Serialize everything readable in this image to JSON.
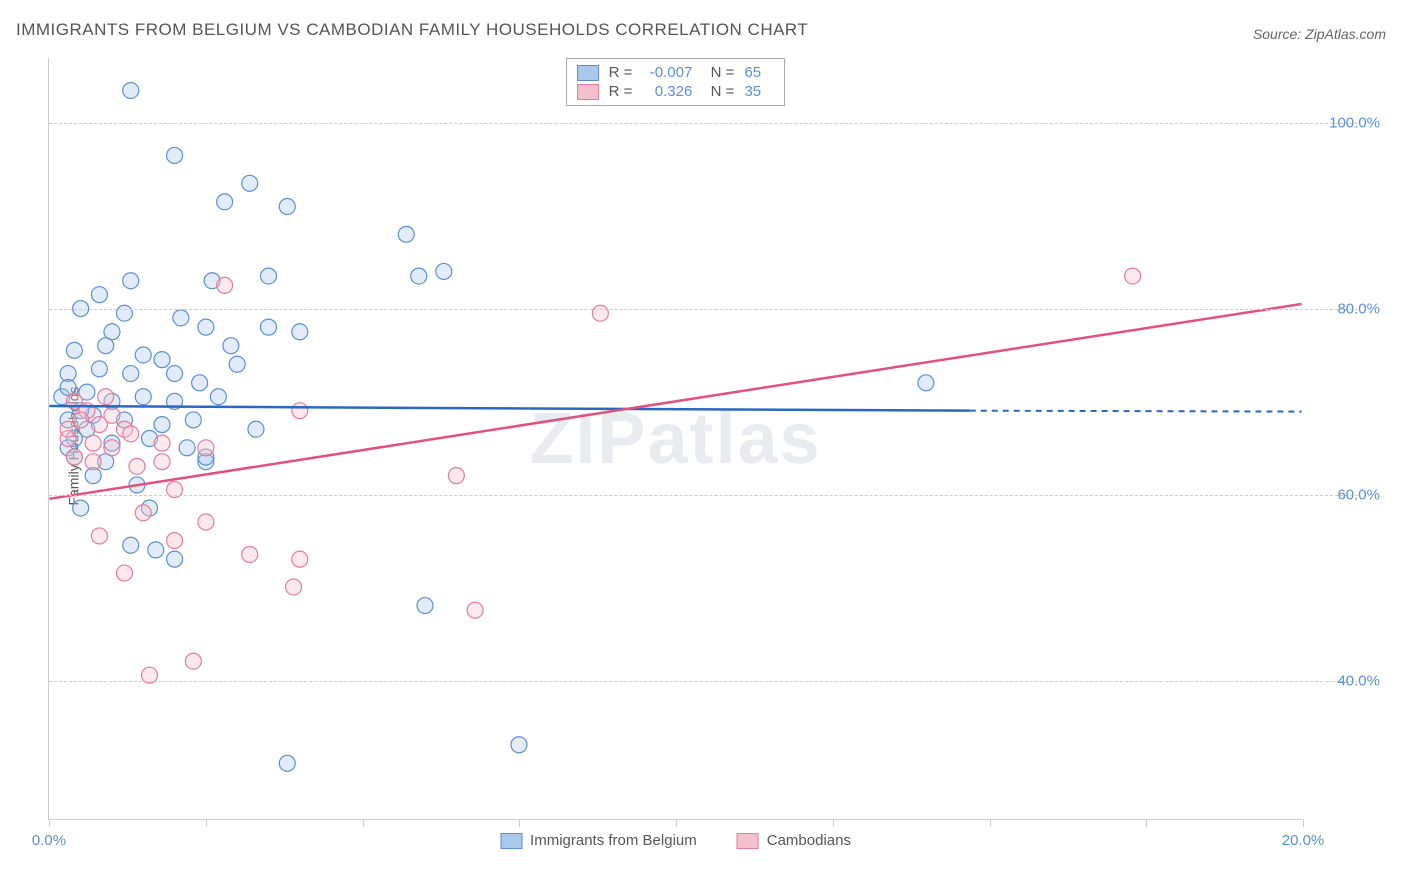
{
  "title": "IMMIGRANTS FROM BELGIUM VS CAMBODIAN FAMILY HOUSEHOLDS CORRELATION CHART",
  "source": "Source: ZipAtlas.com",
  "watermark": "ZIPatlas",
  "y_axis_label": "Family Households",
  "chart": {
    "type": "scatter-with-regression",
    "xlim": [
      0,
      20
    ],
    "ylim": [
      25,
      107
    ],
    "x_ticks": [
      0,
      2.5,
      5,
      7.5,
      10,
      12.5,
      15,
      17.5,
      20
    ],
    "x_tick_labels_shown": {
      "0": "0.0%",
      "20": "20.0%"
    },
    "y_gridlines": [
      40,
      60,
      80,
      100
    ],
    "y_tick_labels": {
      "40": "40.0%",
      "60": "60.0%",
      "80": "80.0%",
      "100": "100.0%"
    },
    "background_color": "#ffffff",
    "grid_color": "#cccccc",
    "marker_radius": 8,
    "marker_stroke_width": 1.2,
    "marker_fill_opacity": 0.35,
    "line_width": 2.5,
    "series": [
      {
        "name": "Immigrants from Belgium",
        "color_fill": "#a8c8ec",
        "color_stroke": "#5a8fd6",
        "line_color": "#2968c0",
        "R": "-0.007",
        "N": "65",
        "regression": {
          "x0": 0,
          "y0": 69.5,
          "x1": 14.7,
          "y1": 69.0,
          "extend_dashed_to": 20,
          "extend_y": 68.9
        },
        "points": [
          [
            1.3,
            103.5
          ],
          [
            2.0,
            96.5
          ],
          [
            3.2,
            93.5
          ],
          [
            2.8,
            91.5
          ],
          [
            3.8,
            91.0
          ],
          [
            5.7,
            88.0
          ],
          [
            1.3,
            83.0
          ],
          [
            2.6,
            83.0
          ],
          [
            0.8,
            81.5
          ],
          [
            3.5,
            83.5
          ],
          [
            5.9,
            83.5
          ],
          [
            6.3,
            84.0
          ],
          [
            0.5,
            80.0
          ],
          [
            1.2,
            79.5
          ],
          [
            2.1,
            79.0
          ],
          [
            1.0,
            77.5
          ],
          [
            2.5,
            78.0
          ],
          [
            3.5,
            78.0
          ],
          [
            0.4,
            75.5
          ],
          [
            0.9,
            76.0
          ],
          [
            1.5,
            75.0
          ],
          [
            2.9,
            76.0
          ],
          [
            0.3,
            73.0
          ],
          [
            0.8,
            73.5
          ],
          [
            1.3,
            73.0
          ],
          [
            2.0,
            73.0
          ],
          [
            1.8,
            74.5
          ],
          [
            4.0,
            77.5
          ],
          [
            0.2,
            70.5
          ],
          [
            0.6,
            71.0
          ],
          [
            1.0,
            70.0
          ],
          [
            1.5,
            70.5
          ],
          [
            2.0,
            70.0
          ],
          [
            2.7,
            70.5
          ],
          [
            0.3,
            68.0
          ],
          [
            0.7,
            68.5
          ],
          [
            1.2,
            68.0
          ],
          [
            1.8,
            67.5
          ],
          [
            2.3,
            68.0
          ],
          [
            0.4,
            66.0
          ],
          [
            1.0,
            65.5
          ],
          [
            1.6,
            66.0
          ],
          [
            2.2,
            65.0
          ],
          [
            0.3,
            65.0
          ],
          [
            2.5,
            63.5
          ],
          [
            0.7,
            62.0
          ],
          [
            0.5,
            58.5
          ],
          [
            1.6,
            58.5
          ],
          [
            1.3,
            54.5
          ],
          [
            1.7,
            54.0
          ],
          [
            2.0,
            53.0
          ],
          [
            2.5,
            64.0
          ],
          [
            6.0,
            48.0
          ],
          [
            3.8,
            31.0
          ],
          [
            7.5,
            33.0
          ],
          [
            14.0,
            72.0
          ],
          [
            0.3,
            71.5
          ],
          [
            0.5,
            69.0
          ],
          [
            0.6,
            67.0
          ],
          [
            0.4,
            64.0
          ],
          [
            2.4,
            72.0
          ],
          [
            3.0,
            74.0
          ],
          [
            0.9,
            63.5
          ],
          [
            1.4,
            61.0
          ],
          [
            3.3,
            67.0
          ]
        ]
      },
      {
        "name": "Cambodians",
        "color_fill": "#f5c0cd",
        "color_stroke": "#e77a9a",
        "line_color": "#e3507d",
        "R": "0.326",
        "N": "35",
        "regression": {
          "x0": 0,
          "y0": 59.5,
          "x1": 20,
          "y1": 80.5
        },
        "points": [
          [
            2.8,
            82.5
          ],
          [
            8.8,
            79.5
          ],
          [
            17.3,
            83.5
          ],
          [
            0.4,
            70.0
          ],
          [
            0.6,
            69.0
          ],
          [
            0.5,
            68.0
          ],
          [
            0.8,
            67.5
          ],
          [
            1.0,
            68.5
          ],
          [
            1.2,
            67.0
          ],
          [
            0.3,
            66.0
          ],
          [
            0.7,
            65.5
          ],
          [
            1.0,
            65.0
          ],
          [
            1.3,
            66.5
          ],
          [
            1.8,
            65.5
          ],
          [
            2.5,
            65.0
          ],
          [
            0.4,
            64.0
          ],
          [
            0.7,
            63.5
          ],
          [
            1.4,
            63.0
          ],
          [
            1.8,
            63.5
          ],
          [
            4.0,
            69.0
          ],
          [
            2.0,
            60.5
          ],
          [
            6.5,
            62.0
          ],
          [
            1.5,
            58.0
          ],
          [
            2.5,
            57.0
          ],
          [
            0.8,
            55.5
          ],
          [
            2.0,
            55.0
          ],
          [
            1.2,
            51.5
          ],
          [
            3.2,
            53.5
          ],
          [
            4.0,
            53.0
          ],
          [
            3.9,
            50.0
          ],
          [
            2.3,
            42.0
          ],
          [
            1.6,
            40.5
          ],
          [
            6.8,
            47.5
          ],
          [
            0.3,
            67.0
          ],
          [
            0.9,
            70.5
          ]
        ]
      }
    ]
  },
  "legend_bottom": [
    {
      "label": "Immigrants from Belgium",
      "fill": "#a8c8ec",
      "stroke": "#5a8fd6"
    },
    {
      "label": "Cambodians",
      "fill": "#f5c0cd",
      "stroke": "#e77a9a"
    }
  ]
}
